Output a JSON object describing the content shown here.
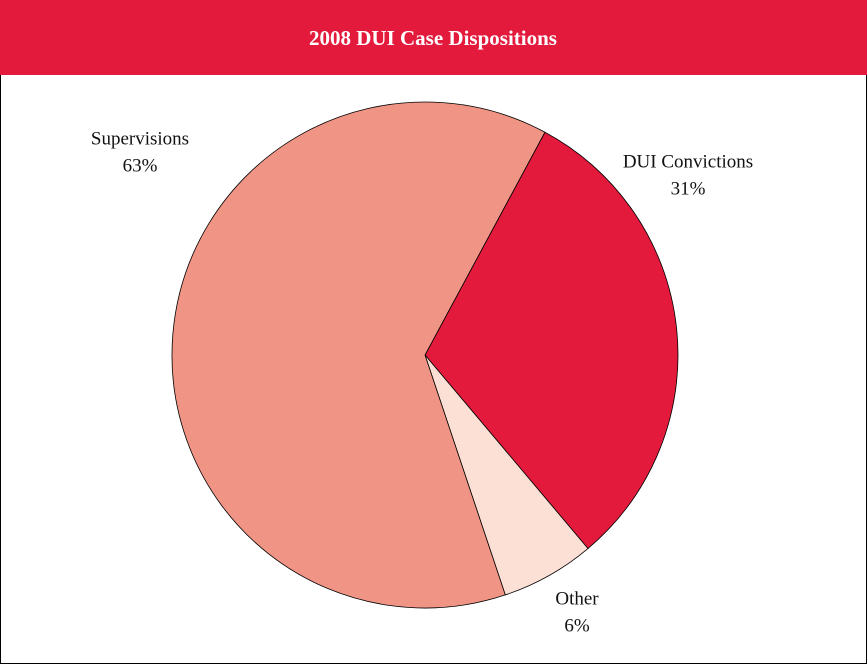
{
  "chart_data": {
    "type": "pie",
    "title": "2008 DUI Case Dispositions",
    "categories": [
      "DUI Convictions",
      "Other",
      "Supervisions"
    ],
    "values": [
      31,
      6,
      63
    ],
    "value_labels": [
      "31%",
      "6%",
      "63%"
    ],
    "colors": [
      "#e31a3c",
      "#fce0d6",
      "#f09585"
    ]
  }
}
